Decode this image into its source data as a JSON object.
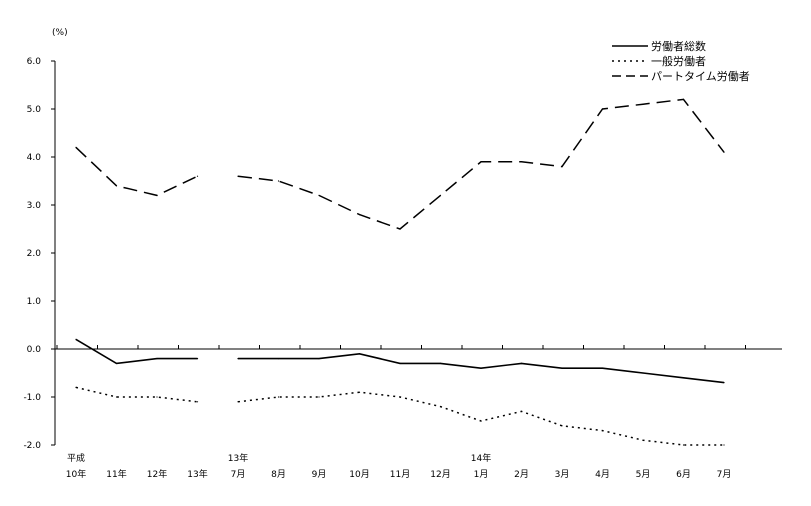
{
  "chart_data": {
    "type": "line",
    "unit_label": "(%)",
    "ylim": [
      -2.0,
      6.0
    ],
    "yticks": [
      "6.0",
      "5.0",
      "4.0",
      "3.0",
      "2.0",
      "1.0",
      "0.0",
      "-1.0",
      "-2.0"
    ],
    "ytick_values": [
      6,
      5,
      4,
      3,
      2,
      1,
      0,
      -1,
      -2
    ],
    "categories": [
      {
        "top": "平成",
        "bottom": "10年"
      },
      {
        "top": "",
        "bottom": "11年"
      },
      {
        "top": "",
        "bottom": "12年"
      },
      {
        "top": "",
        "bottom": "13年"
      },
      {
        "top": "13年",
        "bottom": "7月"
      },
      {
        "top": "",
        "bottom": "8月"
      },
      {
        "top": "",
        "bottom": "9月"
      },
      {
        "top": "",
        "bottom": "10月"
      },
      {
        "top": "",
        "bottom": "11月"
      },
      {
        "top": "",
        "bottom": "12月"
      },
      {
        "top": "14年",
        "bottom": "1月"
      },
      {
        "top": "",
        "bottom": "2月"
      },
      {
        "top": "",
        "bottom": "3月"
      },
      {
        "top": "",
        "bottom": "4月"
      },
      {
        "top": "",
        "bottom": "5月"
      },
      {
        "top": "",
        "bottom": "6月"
      },
      {
        "top": "",
        "bottom": "7月"
      }
    ],
    "segments": [
      [
        0,
        3
      ],
      [
        4,
        16
      ]
    ],
    "series": [
      {
        "name": "労働者総数",
        "style": "solid",
        "values": [
          0.2,
          -0.3,
          -0.2,
          -0.2,
          -0.2,
          -0.2,
          -0.2,
          -0.1,
          -0.3,
          -0.3,
          -0.4,
          -0.3,
          -0.4,
          -0.4,
          -0.5,
          -0.6,
          -0.7
        ]
      },
      {
        "name": "一般労働者",
        "style": "dotted",
        "values": [
          -0.8,
          -1.0,
          -1.0,
          -1.1,
          -1.1,
          -1.0,
          -1.0,
          -0.9,
          -1.0,
          -1.2,
          -1.5,
          -1.3,
          -1.6,
          -1.7,
          -1.9,
          -2.0,
          -2.0
        ]
      },
      {
        "name": "パートタイム労働者",
        "style": "dashed",
        "values": [
          4.2,
          3.4,
          3.2,
          3.6,
          3.6,
          3.5,
          3.2,
          2.8,
          2.5,
          3.2,
          3.9,
          3.9,
          3.8,
          5.0,
          5.1,
          5.2,
          4.1
        ]
      }
    ],
    "legend_position": "top-right",
    "color": "#000000"
  }
}
